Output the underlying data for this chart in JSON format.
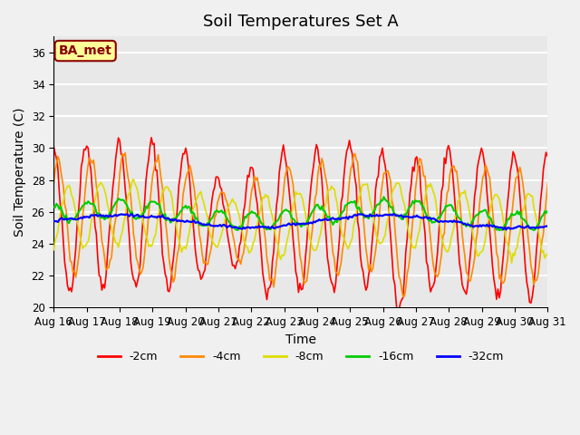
{
  "title": "Soil Temperatures Set A",
  "xlabel": "Time",
  "ylabel": "Soil Temperature (C)",
  "ylim": [
    20,
    37
  ],
  "yticks": [
    20,
    22,
    24,
    26,
    28,
    30,
    32,
    34,
    36
  ],
  "x_labels": [
    "Aug 16",
    "Aug 17",
    "Aug 18",
    "Aug 19",
    "Aug 20",
    "Aug 21",
    "Aug 22",
    "Aug 23",
    "Aug 24",
    "Aug 25",
    "Aug 26",
    "Aug 27",
    "Aug 28",
    "Aug 29",
    "Aug 30",
    "Aug 31"
  ],
  "annotation_text": "BA_met",
  "annotation_bg": "#ffff99",
  "annotation_border": "#8b0000",
  "annotation_text_color": "#8b0000",
  "colors": {
    "-2cm": "#ff0000",
    "-4cm": "#ff8800",
    "-8cm": "#dddd00",
    "-16cm": "#00cc00",
    "-32cm": "#0000ff"
  },
  "background_color": "#e8e8e8",
  "grid_color": "#ffffff",
  "title_fontsize": 13,
  "label_fontsize": 10,
  "tick_fontsize": 8.5,
  "legend_fontsize": 9
}
